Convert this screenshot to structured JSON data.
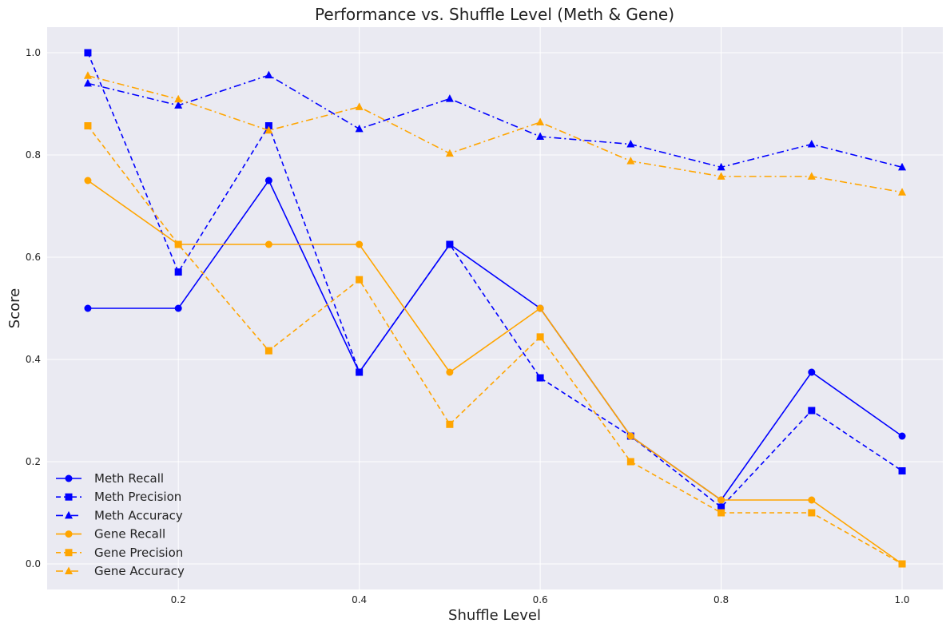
{
  "chart_data": {
    "type": "line",
    "title": "Performance vs. Shuffle Level (Meth & Gene)",
    "xlabel": "Shuffle Level",
    "ylabel": "Score",
    "xlim": [
      0.055,
      1.045
    ],
    "ylim": [
      -0.05,
      1.05
    ],
    "xticks": [
      "0.2",
      "0.4",
      "0.6",
      "0.8",
      "1.0"
    ],
    "yticks": [
      "0.0",
      "0.2",
      "0.4",
      "0.6",
      "0.8",
      "1.0"
    ],
    "grid": true,
    "legend_position": "lower-left",
    "x": [
      0.1,
      0.2,
      0.3,
      0.4,
      0.5,
      0.6,
      0.7,
      0.8,
      0.9,
      1.0
    ],
    "series": [
      {
        "name": "Meth Recall",
        "color": "#0000ff",
        "linestyle": "solid",
        "marker": "circle",
        "values": [
          0.5,
          0.5,
          0.75,
          0.375,
          0.625,
          0.5,
          0.25,
          0.125,
          0.375,
          0.25
        ]
      },
      {
        "name": "Meth Precision",
        "color": "#0000ff",
        "linestyle": "dashed",
        "marker": "square",
        "values": [
          1.0,
          0.571,
          0.857,
          0.375,
          0.625,
          0.364,
          0.25,
          0.111,
          0.3,
          0.182
        ]
      },
      {
        "name": "Meth Accuracy",
        "color": "#0000ff",
        "linestyle": "dashdot",
        "marker": "triangle",
        "values": [
          0.94,
          0.897,
          0.956,
          0.851,
          0.91,
          0.836,
          0.821,
          0.776,
          0.821,
          0.776
        ]
      },
      {
        "name": "Gene Recall",
        "color": "#ffa500",
        "linestyle": "solid",
        "marker": "circle",
        "values": [
          0.75,
          0.625,
          0.625,
          0.625,
          0.375,
          0.5,
          0.25,
          0.125,
          0.125,
          0.0
        ]
      },
      {
        "name": "Gene Precision",
        "color": "#ffa500",
        "linestyle": "dashed",
        "marker": "square",
        "values": [
          0.857,
          0.625,
          0.417,
          0.556,
          0.273,
          0.444,
          0.2,
          0.1,
          0.1,
          0.0
        ]
      },
      {
        "name": "Gene Accuracy",
        "color": "#ffa500",
        "linestyle": "dashdot",
        "marker": "triangle",
        "values": [
          0.955,
          0.909,
          0.848,
          0.894,
          0.803,
          0.864,
          0.788,
          0.758,
          0.758,
          0.727
        ]
      }
    ]
  }
}
